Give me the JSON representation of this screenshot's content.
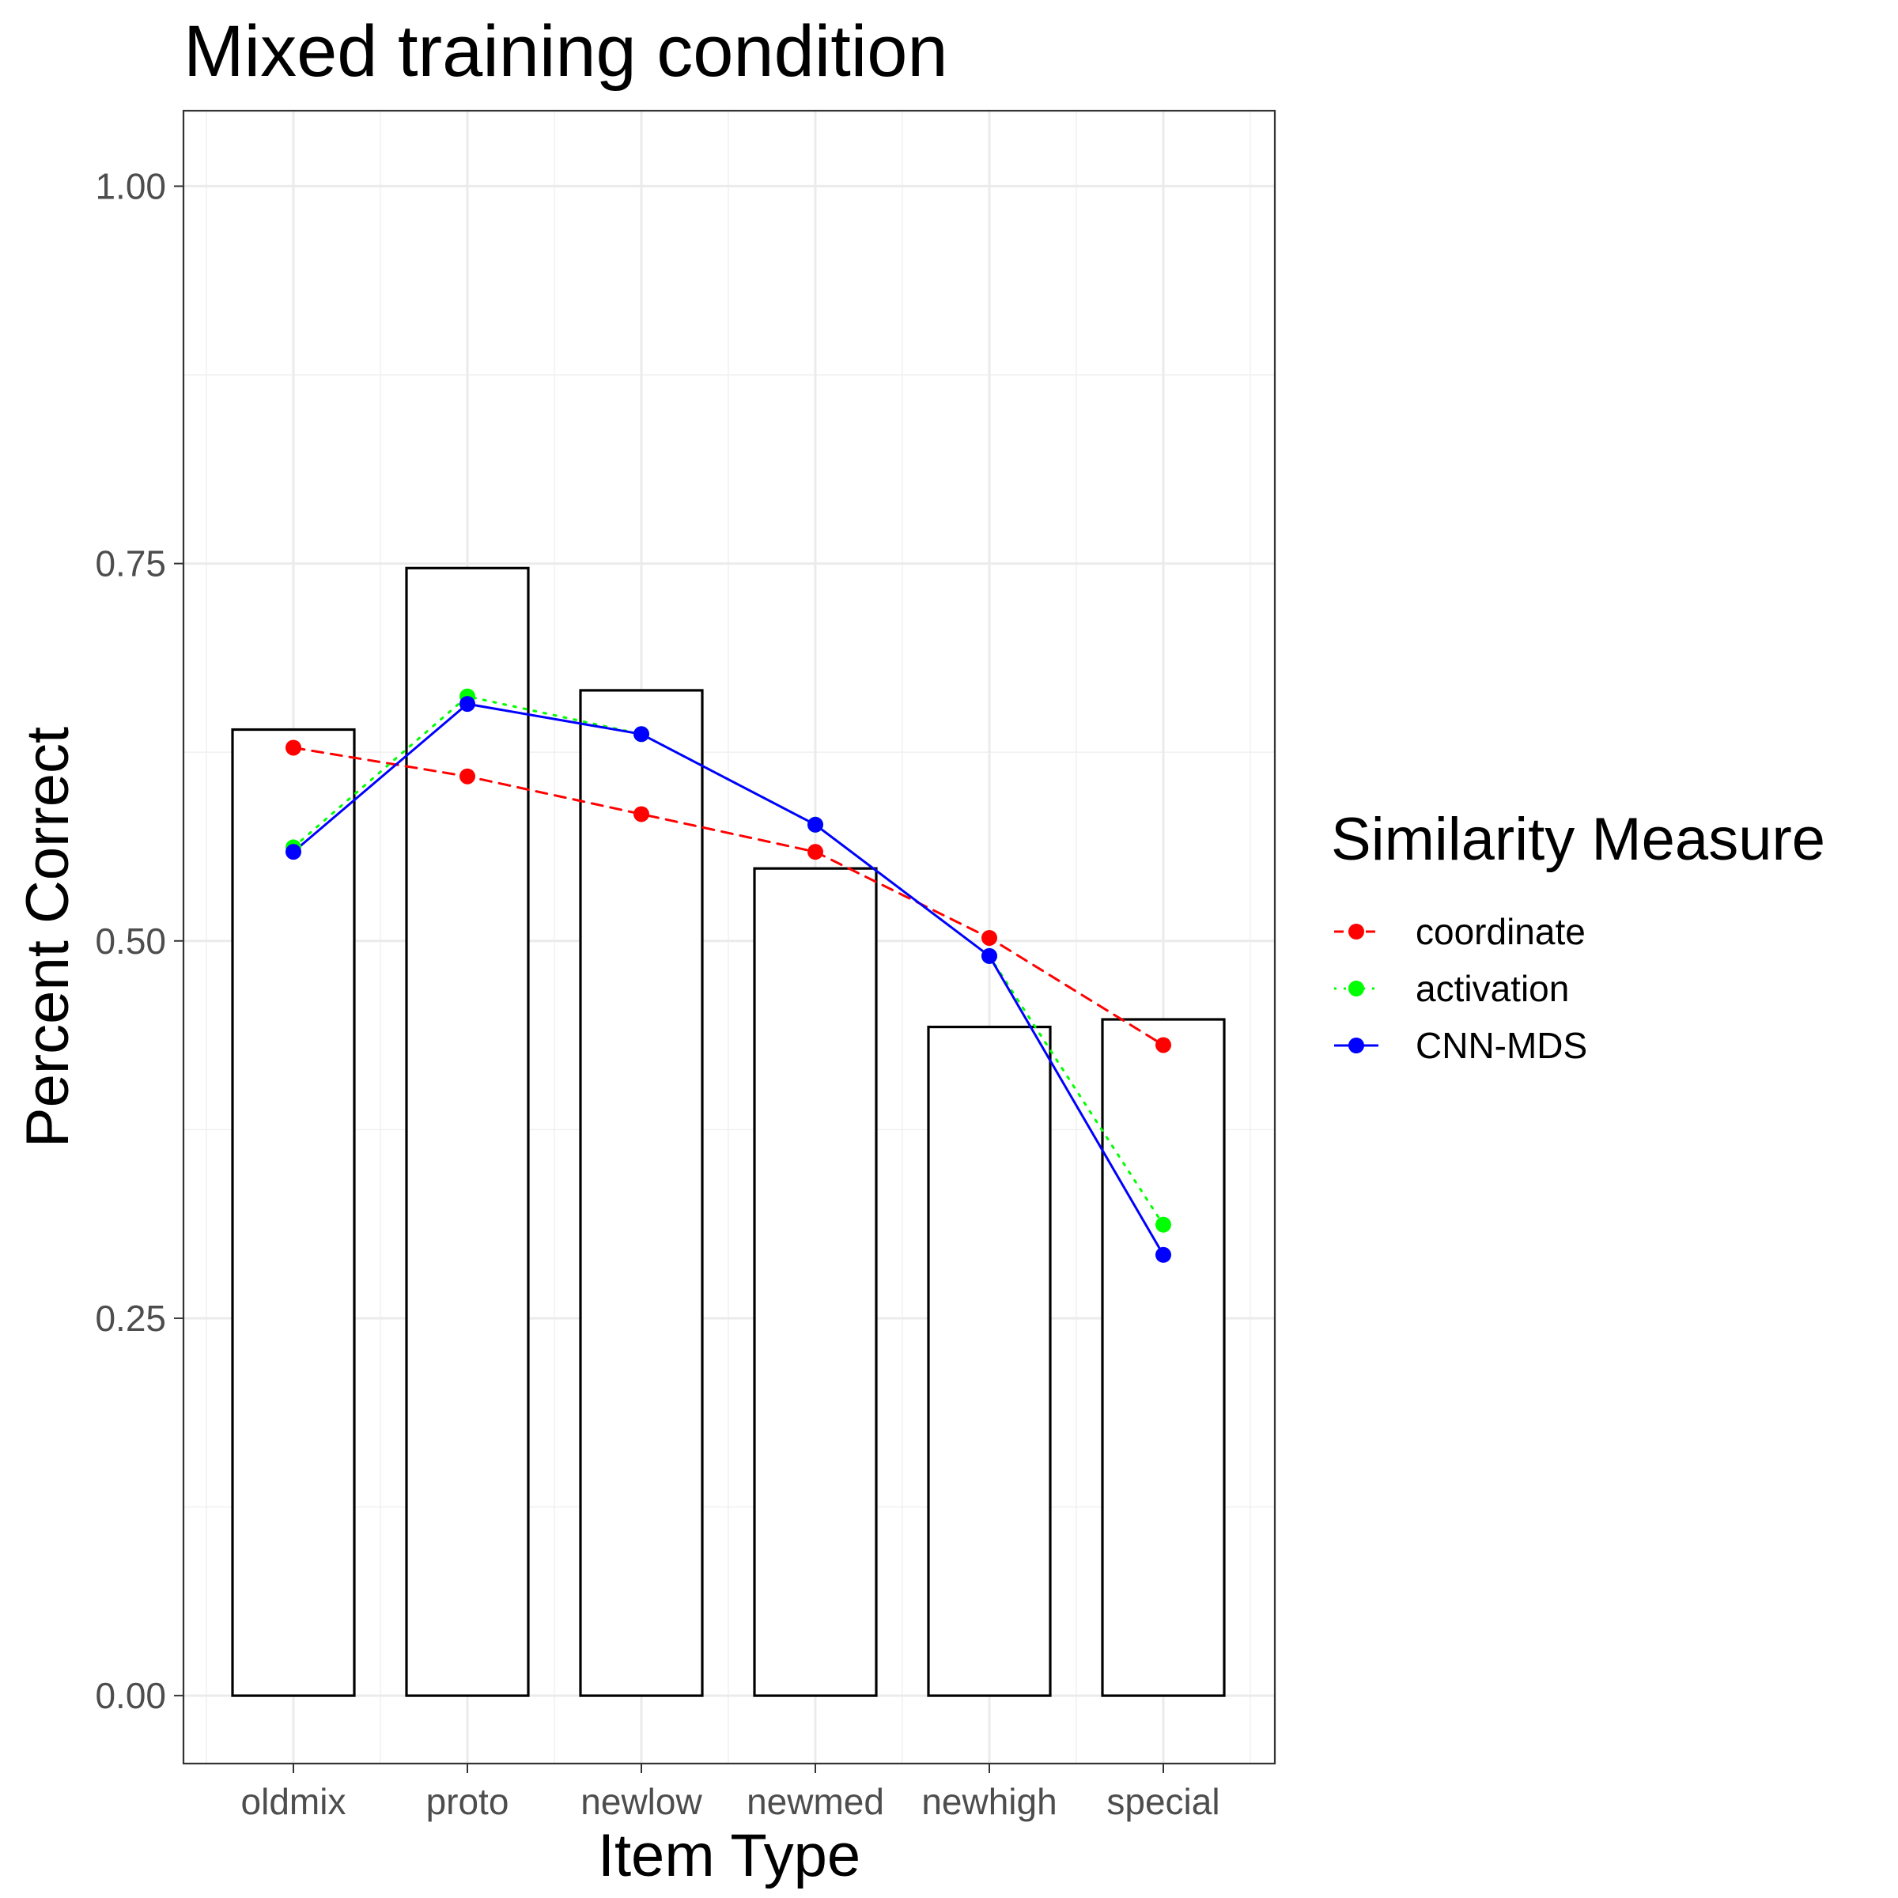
{
  "chart_data": {
    "type": "bar",
    "title": "Mixed training condition",
    "xlabel": "Item Type",
    "ylabel": "Percent Correct",
    "categories": [
      "oldmix",
      "proto",
      "newlow",
      "newmed",
      "newhigh",
      "special"
    ],
    "y_ticks": [
      "0.00",
      "0.25",
      "0.50",
      "0.75",
      "1.00"
    ],
    "ylim": [
      -0.045,
      1.05
    ],
    "grid": true,
    "bar_values": [
      0.64,
      0.747,
      0.666,
      0.548,
      0.443,
      0.448
    ],
    "bar_fill": "#ffffff",
    "bar_stroke": "#000000",
    "legend": {
      "title": "Similarity Measure",
      "placement": "right"
    },
    "series": [
      {
        "name": "coordinate",
        "color": "#ff0000",
        "line": "dashed",
        "values": [
          0.628,
          0.609,
          0.584,
          0.559,
          0.502,
          0.431
        ]
      },
      {
        "name": "activation",
        "color": "#00ff00",
        "line": "dotted",
        "values": [
          0.562,
          0.662,
          0.637,
          0.577,
          0.49,
          0.312
        ]
      },
      {
        "name": "CNN-MDS",
        "color": "#0000ff",
        "line": "solid",
        "values": [
          0.559,
          0.657,
          0.637,
          0.577,
          0.49,
          0.292
        ]
      }
    ]
  }
}
